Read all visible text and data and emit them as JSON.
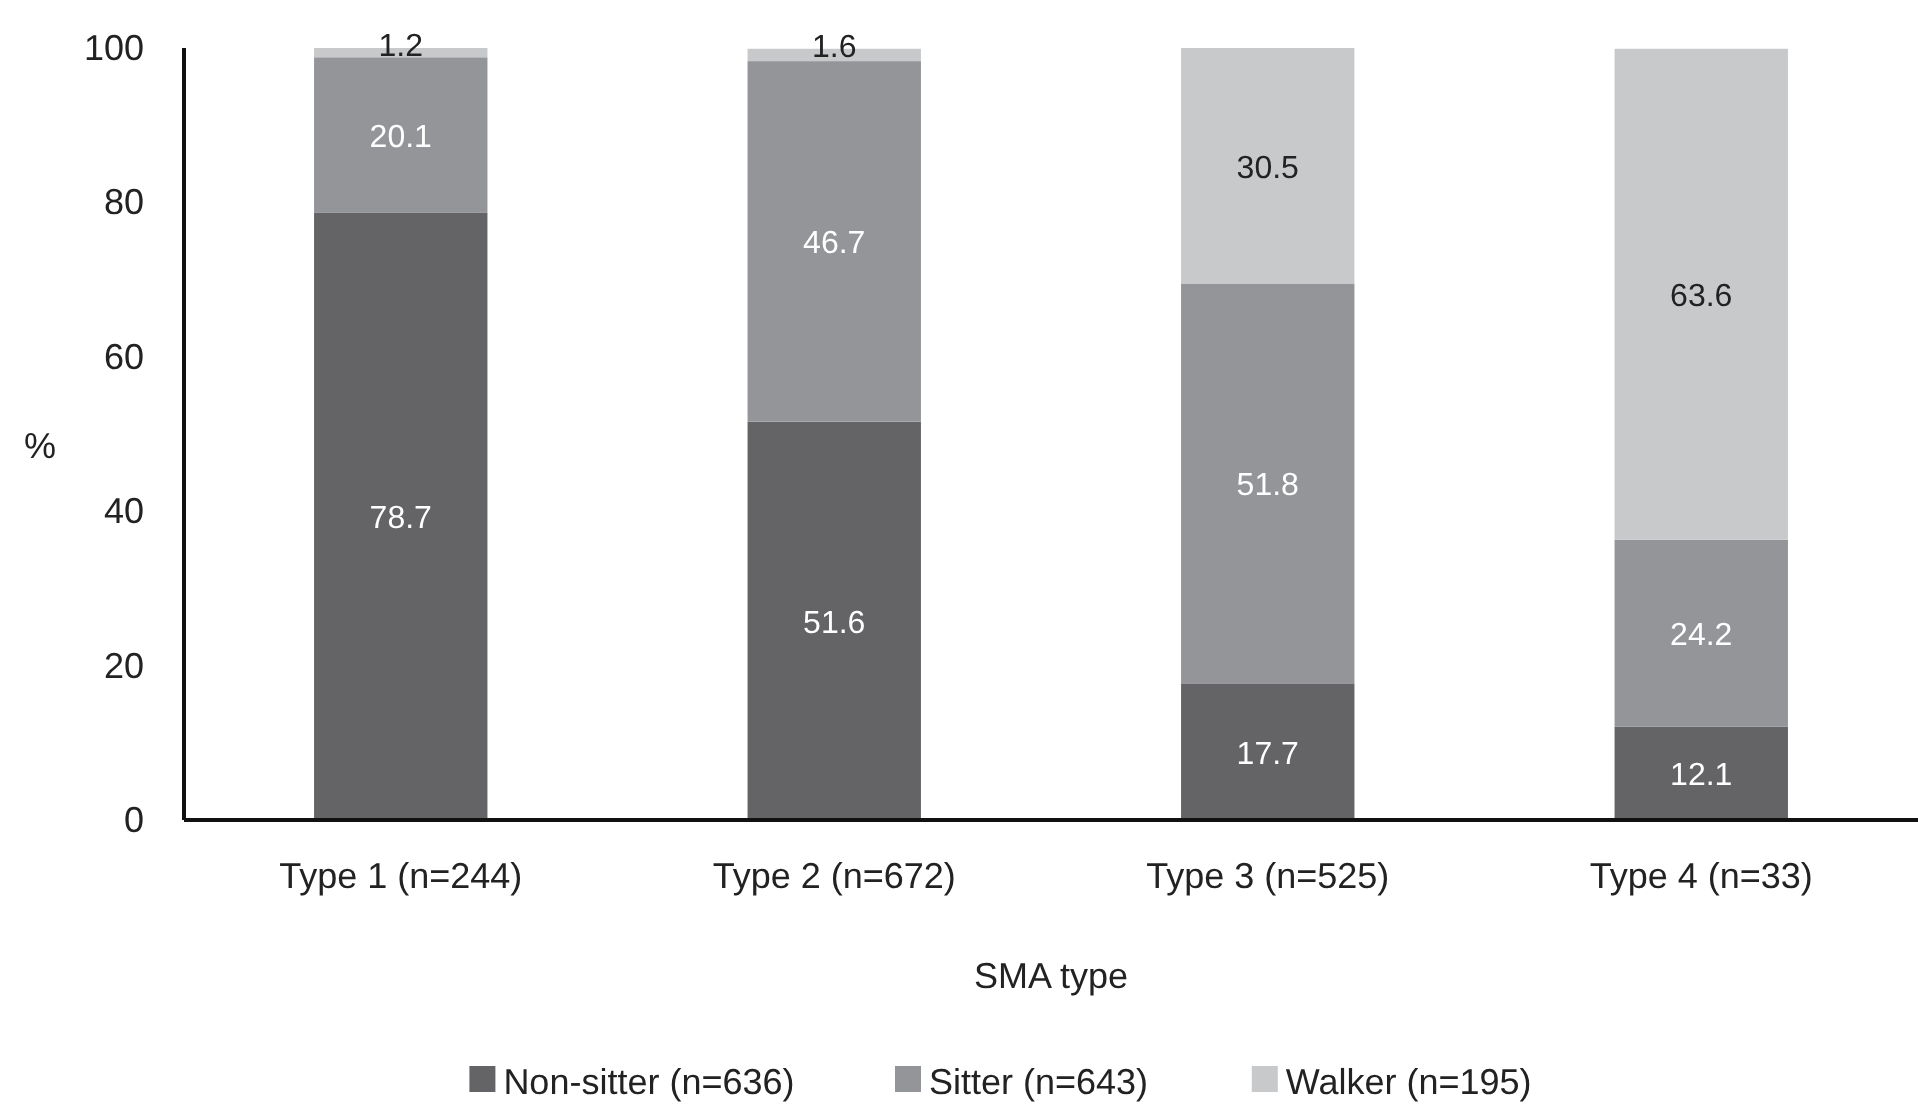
{
  "chart_data": {
    "type": "bar",
    "stacked": true,
    "xlabel": "SMA type",
    "ylabel": "%",
    "categories": [
      "Type 1 (n=244)",
      "Type 2 (n=672)",
      "Type 3 (n=525)",
      "Type 4 (n=33)"
    ],
    "series": [
      {
        "name": "Non-sitter (n=636)",
        "color": "#646466",
        "values": [
          78.7,
          51.6,
          17.7,
          12.1
        ]
      },
      {
        "name": "Sitter (n=643)",
        "color": "#949598",
        "values": [
          20.1,
          46.7,
          51.8,
          24.2
        ]
      },
      {
        "name": "Walker (n=195)",
        "color": "#c8c9cb",
        "values": [
          1.2,
          1.6,
          30.5,
          63.6
        ]
      }
    ],
    "ylim": [
      0,
      100
    ],
    "yticks": [
      0,
      20,
      40,
      60,
      80,
      100
    ],
    "data_labels": true,
    "legend": "bottom",
    "grid": false
  }
}
